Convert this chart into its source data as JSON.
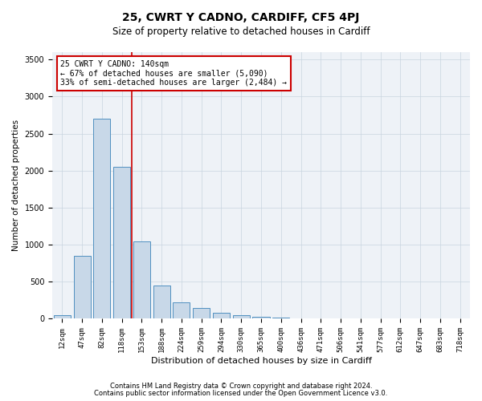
{
  "title": "25, CWRT Y CADNO, CARDIFF, CF5 4PJ",
  "subtitle": "Size of property relative to detached houses in Cardiff",
  "xlabel": "Distribution of detached houses by size in Cardiff",
  "ylabel": "Number of detached properties",
  "categories": [
    "12sqm",
    "47sqm",
    "82sqm",
    "118sqm",
    "153sqm",
    "188sqm",
    "224sqm",
    "259sqm",
    "294sqm",
    "330sqm",
    "365sqm",
    "400sqm",
    "436sqm",
    "471sqm",
    "506sqm",
    "541sqm",
    "577sqm",
    "612sqm",
    "647sqm",
    "683sqm",
    "718sqm"
  ],
  "values": [
    50,
    850,
    2700,
    2050,
    1050,
    450,
    220,
    150,
    80,
    50,
    30,
    20,
    10,
    5,
    3,
    2,
    1,
    1,
    0,
    0,
    0
  ],
  "bar_color": "#c8d8e8",
  "bar_edge_color": "#5090c0",
  "vline_x": 3.5,
  "vline_color": "#cc0000",
  "ylim": [
    0,
    3600
  ],
  "yticks": [
    0,
    500,
    1000,
    1500,
    2000,
    2500,
    3000,
    3500
  ],
  "annotation_text": "25 CWRT Y CADNO: 140sqm\n← 67% of detached houses are smaller (5,090)\n33% of semi-detached houses are larger (2,484) →",
  "annotation_box_color": "#cc0000",
  "footer_line1": "Contains HM Land Registry data © Crown copyright and database right 2024.",
  "footer_line2": "Contains public sector information licensed under the Open Government Licence v3.0.",
  "bg_color": "#eef2f7",
  "grid_color": "#c8d4e0",
  "title_fontsize": 10,
  "subtitle_fontsize": 8.5,
  "ylabel_fontsize": 7.5,
  "xlabel_fontsize": 8,
  "tick_fontsize": 6.5,
  "ytick_fontsize": 7,
  "annotation_fontsize": 7,
  "footer_fontsize": 6
}
